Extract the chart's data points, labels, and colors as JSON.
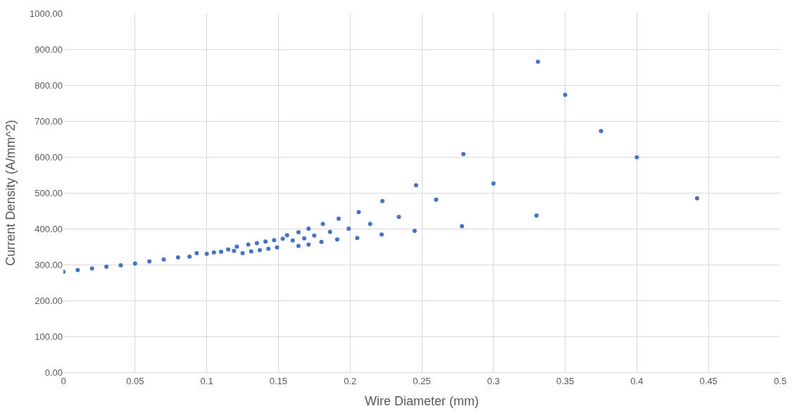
{
  "chart_data": {
    "type": "scatter",
    "xlabel": "Wire Diameter (mm)",
    "ylabel": "Current Density (A/mm^2)",
    "series": [
      {
        "color": "#4472c4",
        "x": [
          0,
          0.01,
          0.02,
          0.03,
          0.04,
          0.05,
          0.06,
          0.07,
          0.08,
          0.088,
          0.093,
          0.1,
          0.105,
          0.11,
          0.115,
          0.119,
          0.121,
          0.125,
          0.129,
          0.131,
          0.135,
          0.137,
          0.141,
          0.143,
          0.147,
          0.149,
          0.153,
          0.156,
          0.16,
          0.164,
          0.164,
          0.168,
          0.171,
          0.171,
          0.175,
          0.18,
          0.181,
          0.186,
          0.191,
          0.192,
          0.199,
          0.205,
          0.206,
          0.214,
          0.222,
          0.2225,
          0.234,
          0.245,
          0.246,
          0.26,
          0.278,
          0.279,
          0.3,
          0.33,
          0.331,
          0.35,
          0.375,
          0.4,
          0.442
        ],
        "values": [
          280,
          285,
          289,
          294,
          298,
          303,
          309,
          314,
          320,
          322,
          332,
          330,
          334,
          336,
          342,
          338,
          350,
          332,
          356,
          337,
          360,
          340,
          364,
          344,
          368,
          348,
          372,
          382,
          367,
          352,
          390,
          373,
          356,
          400,
          381,
          363,
          413,
          391,
          370,
          428,
          400,
          374,
          446,
          413,
          384,
          477,
          433,
          394,
          521,
          481,
          407,
          608,
          526,
          437,
          865,
          773,
          672,
          599,
          485
        ]
      }
    ],
    "xlim": [
      0,
      0.5
    ],
    "xticks": [
      0,
      0.05,
      0.1,
      0.15,
      0.2,
      0.25,
      0.3,
      0.35,
      0.4,
      0.45,
      0.5
    ],
    "ylim": [
      0,
      1000
    ],
    "yticks": [
      {
        "value": 0,
        "label": "0.00"
      },
      {
        "value": 100,
        "label": "100.00"
      },
      {
        "value": 200,
        "label": "200.00"
      },
      {
        "value": 300,
        "label": "300.00"
      },
      {
        "value": 400,
        "label": "400.00"
      },
      {
        "value": 500,
        "label": "500.00"
      },
      {
        "value": 600,
        "label": "600.00"
      },
      {
        "value": 700,
        "label": "700.00"
      },
      {
        "value": 800,
        "label": "800.00"
      },
      {
        "value": 900,
        "label": "900.00"
      },
      {
        "value": 1000,
        "label": "1000.00"
      }
    ],
    "grid": true,
    "marker": "circle"
  }
}
